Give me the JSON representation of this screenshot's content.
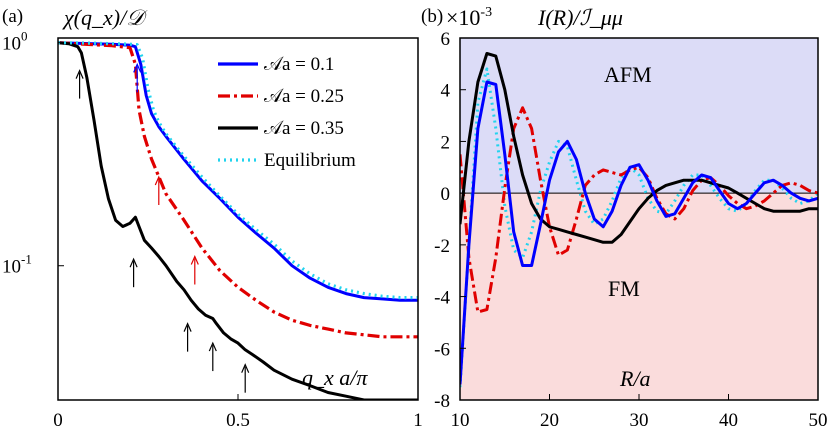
{
  "chart_data": [
    {
      "panel": "(a)",
      "type": "line",
      "title": "χ(q_x)/𝒟",
      "xlabel": "q_x a/π",
      "ylabel": "",
      "yscale": "log",
      "xlim": [
        0,
        1
      ],
      "ylim": [
        0.025,
        1.05
      ],
      "xticks": [
        0,
        0.5,
        1
      ],
      "xtick_labels": [
        "0",
        "0.5",
        "1"
      ],
      "yticks": [
        1,
        0.1
      ],
      "ytick_labels": [
        {
          "base": "10",
          "exp": "0"
        },
        {
          "base": "10",
          "exp": "-1"
        }
      ],
      "legend_position": "top-right",
      "series": [
        {
          "name": "𝒜a = 0.1",
          "color": "#0000ff",
          "dash": "solid",
          "x": [
            0,
            0.05,
            0.1,
            0.15,
            0.2,
            0.215,
            0.23,
            0.245,
            0.26,
            0.28,
            0.3,
            0.35,
            0.4,
            0.45,
            0.5,
            0.55,
            0.6,
            0.65,
            0.7,
            0.75,
            0.8,
            0.85,
            0.9,
            0.95,
            1
          ],
          "y": [
            1,
            0.995,
            0.99,
            0.985,
            0.975,
            0.96,
            0.8,
            0.58,
            0.48,
            0.42,
            0.38,
            0.3,
            0.24,
            0.2,
            0.165,
            0.14,
            0.12,
            0.1,
            0.088,
            0.08,
            0.075,
            0.072,
            0.071,
            0.07,
            0.07
          ]
        },
        {
          "name": "𝒜a = 0.25",
          "color": "#e00000",
          "dash": "dashdot",
          "x": [
            0,
            0.05,
            0.1,
            0.15,
            0.2,
            0.215,
            0.225,
            0.24,
            0.26,
            0.3,
            0.35,
            0.4,
            0.45,
            0.5,
            0.55,
            0.6,
            0.65,
            0.7,
            0.75,
            0.8,
            0.85,
            0.9,
            0.95,
            1
          ],
          "y": [
            1,
            0.99,
            0.98,
            0.97,
            0.95,
            0.8,
            0.5,
            0.38,
            0.3,
            0.21,
            0.16,
            0.12,
            0.095,
            0.08,
            0.07,
            0.062,
            0.057,
            0.054,
            0.052,
            0.05,
            0.049,
            0.048,
            0.048,
            0.048
          ]
        },
        {
          "name": "𝒜a = 0.35",
          "color": "#000000",
          "dash": "solid",
          "x": [
            0,
            0.03,
            0.055,
            0.065,
            0.08,
            0.1,
            0.12,
            0.14,
            0.16,
            0.18,
            0.2,
            0.215,
            0.225,
            0.24,
            0.26,
            0.28,
            0.3,
            0.33,
            0.35,
            0.37,
            0.39,
            0.41,
            0.43,
            0.44,
            0.46,
            0.48,
            0.5,
            0.52,
            0.54,
            0.57,
            0.6,
            0.65,
            0.7,
            0.75,
            0.8,
            0.85,
            0.9,
            0.95,
            1
          ],
          "y": [
            1,
            0.99,
            0.96,
            0.9,
            0.7,
            0.45,
            0.28,
            0.2,
            0.16,
            0.15,
            0.155,
            0.165,
            0.15,
            0.13,
            0.12,
            0.11,
            0.1,
            0.085,
            0.078,
            0.07,
            0.064,
            0.06,
            0.058,
            0.055,
            0.05,
            0.047,
            0.045,
            0.042,
            0.04,
            0.037,
            0.034,
            0.031,
            0.029,
            0.027,
            0.026,
            0.025,
            0.025,
            0.025,
            0.025
          ]
        },
        {
          "name": "Equilibrium",
          "color": "#22d3ee",
          "dash": "dotted",
          "x": [
            0,
            0.05,
            0.1,
            0.15,
            0.2,
            0.22,
            0.235,
            0.25,
            0.265,
            0.28,
            0.3,
            0.35,
            0.4,
            0.45,
            0.5,
            0.55,
            0.6,
            0.65,
            0.7,
            0.75,
            0.8,
            0.85,
            0.9,
            0.95,
            1
          ],
          "y": [
            1,
            0.998,
            0.995,
            0.99,
            0.985,
            0.98,
            0.85,
            0.62,
            0.5,
            0.44,
            0.39,
            0.31,
            0.25,
            0.205,
            0.17,
            0.145,
            0.125,
            0.105,
            0.092,
            0.083,
            0.078,
            0.075,
            0.073,
            0.072,
            0.072
          ]
        }
      ],
      "arrows": [
        {
          "x": 0.06,
          "y": 0.75,
          "color": "#000000"
        },
        {
          "x": 0.22,
          "y": 0.8,
          "color": "#0000ff"
        },
        {
          "x": 0.28,
          "y": 0.25,
          "color": "#e00000"
        },
        {
          "x": 0.38,
          "y": 0.11,
          "color": "#e00000"
        },
        {
          "x": 0.21,
          "y": 0.107,
          "color": "#000000"
        },
        {
          "x": 0.36,
          "y": 0.055,
          "color": "#000000"
        },
        {
          "x": 0.43,
          "y": 0.045,
          "color": "#000000"
        },
        {
          "x": 0.52,
          "y": 0.036,
          "color": "#000000"
        }
      ]
    },
    {
      "panel": "(b)",
      "type": "line",
      "title": "I(R)/ℐ_μμ",
      "scale_label": {
        "base": "×10",
        "exp": "-3"
      },
      "xlabel": "R/a",
      "ylabel": "",
      "xlim": [
        10,
        50
      ],
      "ylim": [
        -8,
        6
      ],
      "xticks": [
        10,
        20,
        30,
        40,
        50
      ],
      "yticks": [
        6,
        4,
        2,
        0,
        -2,
        -4,
        -6,
        -8
      ],
      "regions": [
        {
          "label": "AFM",
          "from": 0,
          "to": 6,
          "color": "#dcdcf7"
        },
        {
          "label": "FM",
          "from": -8,
          "to": 0,
          "color": "#fadcdc"
        }
      ],
      "series": [
        {
          "name": "𝒜a = 0.1",
          "color": "#0000ff",
          "dash": "solid",
          "x": [
            10,
            11,
            12,
            13,
            14,
            15,
            16,
            17,
            18,
            19,
            20,
            21,
            22,
            23,
            24,
            25,
            26,
            27,
            28,
            29,
            30,
            31,
            32,
            33,
            34,
            35,
            36,
            37,
            38,
            39,
            40,
            41,
            42,
            43,
            44,
            45,
            46,
            47,
            48,
            49,
            50
          ],
          "y": [
            -7.4,
            -2,
            2.5,
            4.3,
            4.2,
            1.5,
            -1.5,
            -2.8,
            -2.8,
            -1.2,
            0.5,
            1.6,
            2,
            1.3,
            0,
            -1,
            -1.3,
            -0.7,
            0.3,
            1,
            1.1,
            0.5,
            -0.3,
            -0.9,
            -0.8,
            -0.2,
            0.4,
            0.7,
            0.6,
            0.1,
            -0.4,
            -0.6,
            -0.4,
            0,
            0.4,
            0.5,
            0.3,
            0,
            -0.2,
            -0.3,
            -0.2
          ]
        },
        {
          "name": "𝒜a = 0.25",
          "color": "#e00000",
          "dash": "dashdot",
          "x": [
            10,
            11,
            12,
            13,
            14,
            15,
            16,
            17,
            18,
            19,
            20,
            21,
            22,
            23,
            24,
            25,
            26,
            27,
            28,
            29,
            30,
            31,
            32,
            33,
            34,
            35,
            36,
            37,
            38,
            39,
            40,
            41,
            42,
            43,
            44,
            45,
            46,
            47,
            48,
            49,
            50
          ],
          "y": [
            1.5,
            -2.5,
            -4.6,
            -4.5,
            -2.5,
            0.2,
            2.5,
            3.3,
            2.5,
            0.5,
            -1.3,
            -2.4,
            -2.2,
            -1,
            0.3,
            0.7,
            0.9,
            0.8,
            0.7,
            0.9,
            1,
            0.6,
            -0.2,
            -0.8,
            -1,
            -0.6,
            0.1,
            0.5,
            0.6,
            0.3,
            -0.1,
            -0.4,
            -0.6,
            -0.5,
            -0.3,
            0,
            0.3,
            0.4,
            0.3,
            0.1,
            0
          ]
        },
        {
          "name": "𝒜a = 0.35",
          "color": "#000000",
          "dash": "solid",
          "x": [
            10,
            11,
            12,
            13,
            14,
            15,
            16,
            17,
            18,
            19,
            20,
            21,
            22,
            23,
            24,
            25,
            26,
            27,
            28,
            29,
            30,
            31,
            32,
            33,
            34,
            35,
            36,
            37,
            38,
            39,
            40,
            41,
            42,
            43,
            44,
            45,
            46,
            47,
            48,
            49,
            50
          ],
          "y": [
            -1.2,
            2,
            4.3,
            5.4,
            5.3,
            4,
            2.2,
            0.7,
            -0.4,
            -1,
            -1.3,
            -1.4,
            -1.5,
            -1.6,
            -1.7,
            -1.8,
            -1.9,
            -1.9,
            -1.6,
            -1.1,
            -0.6,
            -0.2,
            0.1,
            0.3,
            0.4,
            0.5,
            0.5,
            0.5,
            0.4,
            0.3,
            0.2,
            0,
            -0.2,
            -0.4,
            -0.6,
            -0.7,
            -0.7,
            -0.7,
            -0.7,
            -0.6,
            -0.6
          ]
        },
        {
          "name": "Equilibrium",
          "color": "#22d3ee",
          "dash": "dotted",
          "x": [
            10,
            11,
            12,
            13,
            14,
            15,
            16,
            17,
            18,
            19,
            20,
            21,
            22,
            23,
            24,
            25,
            26,
            27,
            28,
            29,
            30,
            31,
            32,
            33,
            34,
            35,
            36,
            37,
            38,
            39,
            40,
            41,
            42,
            43,
            44,
            45,
            46,
            47,
            48,
            49,
            50
          ],
          "y": [
            -7.5,
            -2,
            3.5,
            4.8,
            2.5,
            -0.5,
            -2.2,
            -2.5,
            -1.5,
            0.1,
            1.2,
            2,
            1.8,
            0.5,
            -0.7,
            -1.2,
            -1,
            -0.3,
            0.6,
            1,
            0.7,
            -0.2,
            -0.7,
            -0.8,
            -0.3,
            0.3,
            0.7,
            0.7,
            0.3,
            -0.2,
            -0.6,
            -0.7,
            -0.4,
            0.1,
            0.5,
            0.5,
            0.2,
            -0.2,
            -0.4,
            -0.3,
            0
          ]
        }
      ]
    }
  ]
}
